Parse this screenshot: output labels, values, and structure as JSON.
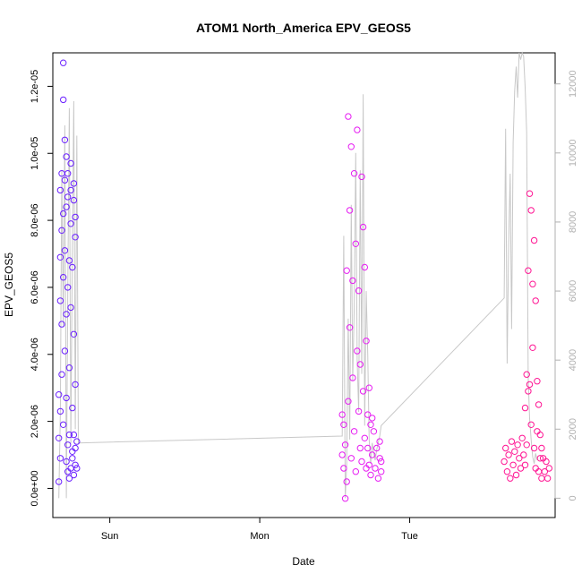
{
  "chart_data": {
    "type": "scatter",
    "title": "ATOM1 North_America EPV_GEOS5",
    "xlabel": "Date",
    "ylabel": "EPV_GEOS5",
    "x_ticks": [
      "Sun",
      "Mon",
      "Tue"
    ],
    "y_ticks": [
      "0.0e+00",
      "2.0e-06",
      "4.0e-06",
      "6.0e-06",
      "8.0e-06",
      "1.0e-05",
      "1.2e-05"
    ],
    "y_tick_values": [
      0,
      2e-06,
      4e-06,
      6e-06,
      8e-06,
      1e-05,
      1.2e-05
    ],
    "y_right_ticks": [
      "0",
      "2000",
      "4000",
      "6000",
      "8000",
      "10000",
      "12000"
    ],
    "y_right_tick_values": [
      0,
      2000,
      4000,
      6000,
      8000,
      10000,
      12000
    ],
    "x_unit": "days from Sun 00:00",
    "xlim": [
      -0.38,
      2.97
    ],
    "ylim": [
      -8.7e-07,
      1.3e-05
    ],
    "y2lim": [
      -560,
      12900
    ],
    "series": [
      {
        "color": "#6a1fff",
        "marker": "circle-open",
        "x": [
          -0.34,
          -0.34,
          -0.34,
          -0.33,
          -0.33,
          -0.33,
          -0.33,
          -0.33,
          -0.32,
          -0.32,
          -0.32,
          -0.32,
          -0.31,
          -0.31,
          -0.31,
          -0.31,
          -0.31,
          -0.3,
          -0.3,
          -0.3,
          -0.3,
          -0.29,
          -0.29,
          -0.29,
          -0.29,
          -0.29,
          -0.28,
          -0.28,
          -0.28,
          -0.28,
          -0.28,
          -0.27,
          -0.27,
          -0.27,
          -0.27,
          -0.26,
          -0.26,
          -0.26,
          -0.26,
          -0.26,
          -0.25,
          -0.25,
          -0.25,
          -0.25,
          -0.24,
          -0.24,
          -0.24,
          -0.24,
          -0.24,
          -0.23,
          -0.23,
          -0.23,
          -0.23,
          -0.23,
          -0.22,
          -0.22
        ],
        "y": [
          1.5e-06,
          2.8e-06,
          2e-07,
          2.3e-06,
          5.6e-06,
          9e-07,
          6.9e-06,
          8.9e-06,
          3.4e-06,
          9.4e-06,
          4.9e-06,
          7.7e-06,
          1.27e-05,
          8.2e-06,
          6.3e-06,
          1.16e-05,
          1.9e-06,
          1.04e-05,
          9.2e-06,
          7.1e-06,
          4.1e-06,
          8.4e-06,
          8e-07,
          5.2e-06,
          9.9e-06,
          2.7e-06,
          5e-07,
          6e-06,
          9.4e-06,
          1.3e-06,
          8.7e-06,
          3.6e-06,
          3e-07,
          6.8e-06,
          1.6e-06,
          8.9e-06,
          9.7e-06,
          5.4e-06,
          6e-07,
          7.9e-06,
          9e-07,
          2.4e-06,
          6.6e-06,
          1.1e-06,
          8.6e-06,
          4.6e-06,
          4e-07,
          1.6e-06,
          9.1e-06,
          7.5e-06,
          1.2e-06,
          3.1e-06,
          7e-07,
          8.1e-06,
          1.4e-06,
          6e-07
        ]
      },
      {
        "color": "#e61cf2",
        "marker": "circle-open",
        "x": [
          1.55,
          1.55,
          1.56,
          1.56,
          1.57,
          1.57,
          1.58,
          1.58,
          1.59,
          1.59,
          1.6,
          1.6,
          1.61,
          1.61,
          1.62,
          1.62,
          1.63,
          1.63,
          1.64,
          1.64,
          1.65,
          1.65,
          1.66,
          1.66,
          1.67,
          1.67,
          1.68,
          1.68,
          1.69,
          1.69,
          1.7,
          1.7,
          1.71,
          1.71,
          1.72,
          1.72,
          1.73,
          1.73,
          1.74,
          1.74,
          1.75,
          1.75,
          1.76,
          1.77,
          1.78,
          1.79,
          1.8,
          1.8,
          1.81,
          1.81
        ],
        "y": [
          2.2e-06,
          1e-06,
          6e-07,
          1.9e-06,
          -3e-07,
          1.3e-06,
          6.5e-06,
          2e-07,
          1.11e-05,
          2.6e-06,
          8.3e-06,
          4.8e-06,
          1.02e-05,
          9e-07,
          6.2e-06,
          3.3e-06,
          9.4e-06,
          1.7e-06,
          7.3e-06,
          5e-07,
          4.1e-06,
          1.07e-05,
          2.3e-06,
          5.9e-06,
          1.2e-06,
          3.7e-06,
          9.3e-06,
          8e-07,
          7.8e-06,
          2.9e-06,
          6.6e-06,
          1.5e-06,
          4.4e-06,
          6e-07,
          2.2e-06,
          1.2e-06,
          3e-06,
          7e-07,
          1.9e-06,
          4e-07,
          2.1e-06,
          1e-06,
          1.7e-06,
          6e-07,
          1.2e-06,
          3e-07,
          9e-07,
          1.4e-06,
          5e-07,
          8e-07
        ]
      },
      {
        "color": "#ff1493",
        "marker": "circle-open",
        "x": [
          2.63,
          2.64,
          2.65,
          2.66,
          2.67,
          2.68,
          2.69,
          2.7,
          2.71,
          2.72,
          2.73,
          2.74,
          2.75,
          2.76,
          2.77,
          2.77,
          2.78,
          2.78,
          2.79,
          2.79,
          2.8,
          2.8,
          2.81,
          2.81,
          2.82,
          2.82,
          2.83,
          2.83,
          2.84,
          2.84,
          2.85,
          2.85,
          2.86,
          2.86,
          2.87,
          2.87,
          2.88,
          2.88,
          2.89,
          2.9,
          2.91,
          2.92,
          2.93
        ],
        "y": [
          8e-07,
          1.2e-06,
          5e-07,
          1e-06,
          3e-07,
          1.4e-06,
          7e-07,
          1.1e-06,
          4e-07,
          1.3e-06,
          9e-07,
          6e-07,
          1.5e-06,
          1e-06,
          2.4e-06,
          7e-07,
          3.4e-06,
          1.3e-06,
          2.9e-06,
          6.5e-06,
          8.8e-06,
          3.1e-06,
          8.3e-06,
          1.9e-06,
          6.1e-06,
          4.2e-06,
          7.4e-06,
          1.2e-06,
          5.6e-06,
          6e-07,
          3.2e-06,
          1.7e-06,
          2.5e-06,
          5e-07,
          1.6e-06,
          9e-07,
          1.2e-06,
          3e-07,
          9e-07,
          5e-07,
          8e-07,
          3e-07,
          6e-07
        ]
      },
      {
        "color": "#c8c8c8",
        "marker": "line",
        "axis": "right",
        "x": [
          -0.34,
          -0.33,
          -0.32,
          -0.31,
          -0.3,
          -0.29,
          -0.28,
          -0.27,
          -0.26,
          -0.25,
          -0.24,
          -0.23,
          -0.22,
          -0.21,
          1.55,
          1.56,
          1.57,
          1.58,
          1.59,
          1.6,
          1.61,
          1.62,
          1.63,
          1.64,
          1.65,
          1.66,
          1.67,
          1.68,
          1.69,
          1.7,
          1.71,
          1.72,
          1.73,
          1.74,
          1.75,
          1.76,
          1.77,
          1.78,
          1.79,
          1.8,
          1.81,
          2.63,
          2.64,
          2.65,
          2.66,
          2.67,
          2.68,
          2.69,
          2.7,
          2.71,
          2.72,
          2.73,
          2.74,
          2.75,
          2.76,
          2.77,
          2.78,
          2.79,
          2.8,
          2.81,
          2.82,
          2.83,
          2.84,
          2.85
        ],
        "y": [
          0,
          2500,
          9500,
          5000,
          10800,
          0,
          6000,
          11300,
          1600,
          7200,
          11500,
          2000,
          10500,
          1600,
          1800,
          7600,
          0,
          1000,
          5200,
          1700,
          8500,
          3400,
          5500,
          10000,
          4000,
          2500,
          9500,
          3600,
          11700,
          2100,
          6000,
          4200,
          1700,
          1000,
          1600,
          1300,
          1100,
          1400,
          1600,
          1800,
          2100,
          5800,
          10700,
          3900,
          7400,
          9400,
          4900,
          10300,
          11800,
          12500,
          11600,
          12900,
          12700,
          12900,
          12800,
          11900,
          10600,
          3500,
          2300,
          1700,
          1200,
          1000,
          1300,
          1100
        ]
      }
    ]
  }
}
